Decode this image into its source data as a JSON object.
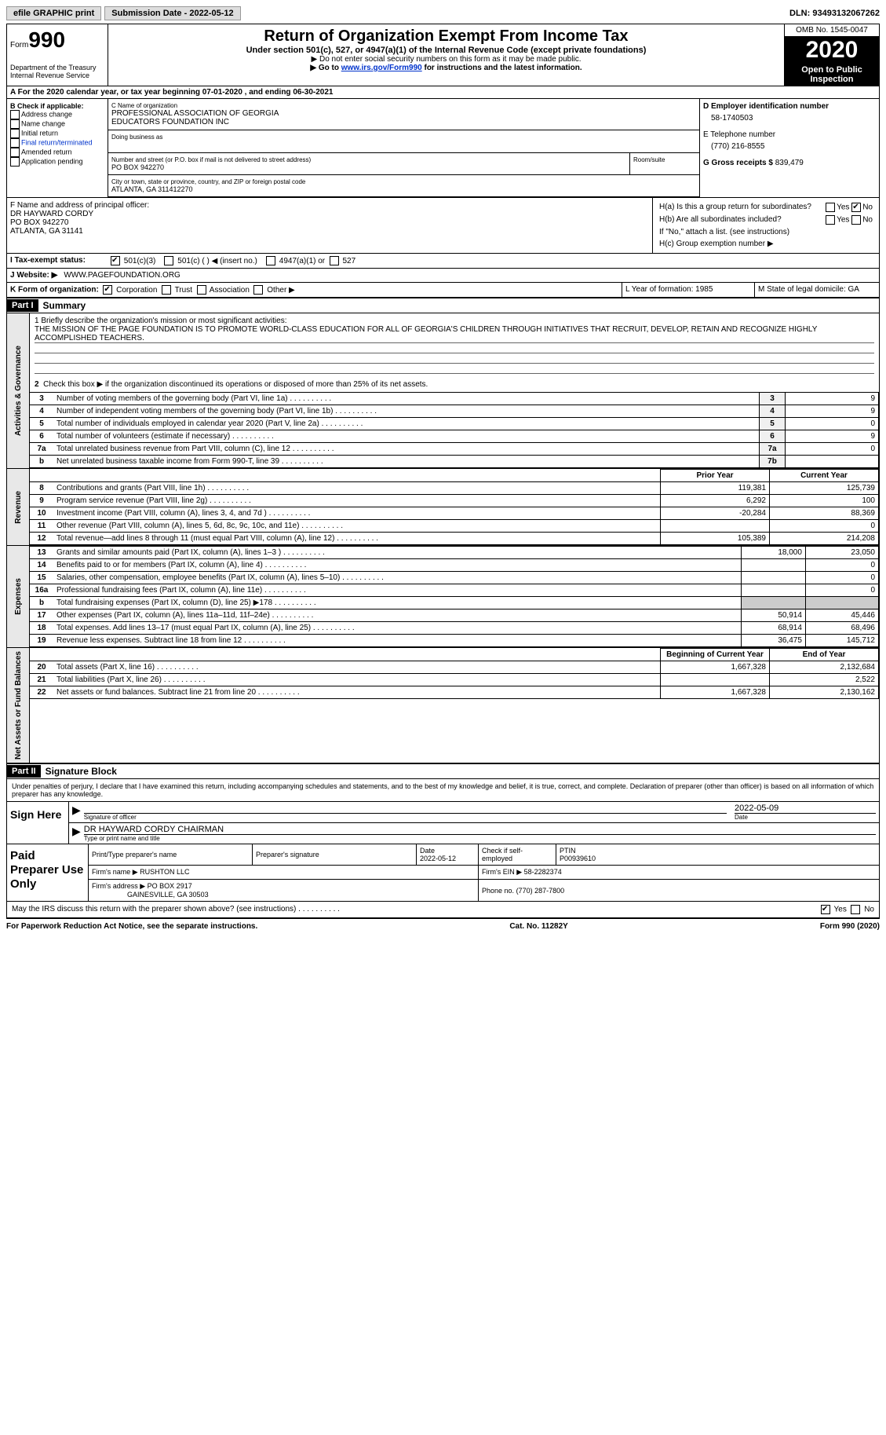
{
  "topbar": {
    "efile": "efile GRAPHIC print",
    "submission_label": "Submission Date - ",
    "submission_date": "2022-05-12",
    "dln_label": "DLN: ",
    "dln": "93493132067262"
  },
  "header": {
    "form_word": "Form",
    "form_num": "990",
    "dept": "Department of the Treasury",
    "irs": "Internal Revenue Service",
    "title": "Return of Organization Exempt From Income Tax",
    "subtitle": "Under section 501(c), 527, or 4947(a)(1) of the Internal Revenue Code (except private foundations)",
    "note1": "▶ Do not enter social security numbers on this form as it may be made public.",
    "note2_pre": "▶ Go to ",
    "note2_link": "www.irs.gov/Form990",
    "note2_post": " for instructions and the latest information.",
    "omb": "OMB No. 1545-0047",
    "year": "2020",
    "open": "Open to Public Inspection"
  },
  "period": {
    "text": "A For the 2020 calendar year, or tax year beginning 07-01-2020    , and ending 06-30-2021"
  },
  "boxB": {
    "label": "B Check if applicable:",
    "items": [
      "Address change",
      "Name change",
      "Initial return",
      "Final return/terminated",
      "Amended return",
      "Application pending"
    ]
  },
  "boxC": {
    "name_label": "C Name of organization",
    "name1": "PROFESSIONAL ASSOCIATION OF GEORGIA",
    "name2": "EDUCATORS FOUNDATION INC",
    "dba_label": "Doing business as",
    "addr_label": "Number and street (or P.O. box if mail is not delivered to street address)",
    "room_label": "Room/suite",
    "addr": "PO BOX 942270",
    "city_label": "City or town, state or province, country, and ZIP or foreign postal code",
    "city": "ATLANTA, GA  311412270"
  },
  "boxD": {
    "label": "D Employer identification number",
    "ein": "58-1740503"
  },
  "boxE": {
    "label": "E Telephone number",
    "phone": "(770) 216-8555"
  },
  "boxG": {
    "label": "G Gross receipts $",
    "amount": "839,479"
  },
  "boxF": {
    "label": "F  Name and address of principal officer:",
    "name": "DR HAYWARD CORDY",
    "addr1": "PO BOX 942270",
    "addr2": "ATLANTA, GA  31141"
  },
  "boxH": {
    "a_label": "H(a)  Is this a group return for subordinates?",
    "b_label": "H(b)  Are all subordinates included?",
    "b_note": "If \"No,\" attach a list. (see instructions)",
    "c_label": "H(c)  Group exemption number ▶",
    "yes": "Yes",
    "no": "No"
  },
  "rowI": {
    "label": "I   Tax-exempt status:",
    "o1": "501(c)(3)",
    "o2": "501(c) (  ) ◀ (insert no.)",
    "o3": "4947(a)(1) or",
    "o4": "527"
  },
  "rowJ": {
    "label": "J   Website: ▶",
    "value": " WWW.PAGEFOUNDATION.ORG"
  },
  "rowK": {
    "label": "K Form of organization:",
    "o1": "Corporation",
    "o2": "Trust",
    "o3": "Association",
    "o4": "Other ▶"
  },
  "rowLM": {
    "l": "L Year of formation: 1985",
    "m": "M State of legal domicile: GA"
  },
  "part1": {
    "header": "Part I",
    "title": "Summary",
    "q1_label": "1   Briefly describe the organization's mission or most significant activities:",
    "mission": "THE MISSION OF THE PAGE FOUNDATION IS TO PROMOTE WORLD-CLASS EDUCATION FOR ALL OF GEORGIA'S CHILDREN THROUGH INITIATIVES THAT RECRUIT, DEVELOP, RETAIN AND RECOGNIZE HIGHLY ACCOMPLISHED TEACHERS.",
    "q2": "Check this box ▶      if the organization discontinued its operations or disposed of more than 25% of its net assets.",
    "gov_label": "Activities & Governance",
    "rev_label": "Revenue",
    "exp_label": "Expenses",
    "net_label": "Net Assets or Fund Balances",
    "gov_rows": [
      {
        "n": "3",
        "d": "Number of voting members of the governing body (Part VI, line 1a)",
        "b": "3",
        "v": "9"
      },
      {
        "n": "4",
        "d": "Number of independent voting members of the governing body (Part VI, line 1b)",
        "b": "4",
        "v": "9"
      },
      {
        "n": "5",
        "d": "Total number of individuals employed in calendar year 2020 (Part V, line 2a)",
        "b": "5",
        "v": "0"
      },
      {
        "n": "6",
        "d": "Total number of volunteers (estimate if necessary)",
        "b": "6",
        "v": "9"
      },
      {
        "n": "7a",
        "d": "Total unrelated business revenue from Part VIII, column (C), line 12",
        "b": "7a",
        "v": "0"
      },
      {
        "n": "b",
        "d": "Net unrelated business taxable income from Form 990-T, line 39",
        "b": "7b",
        "v": ""
      }
    ],
    "prior_hdr": "Prior Year",
    "current_hdr": "Current Year",
    "rev_rows": [
      {
        "n": "8",
        "d": "Contributions and grants (Part VIII, line 1h)",
        "p": "119,381",
        "c": "125,739"
      },
      {
        "n": "9",
        "d": "Program service revenue (Part VIII, line 2g)",
        "p": "6,292",
        "c": "100"
      },
      {
        "n": "10",
        "d": "Investment income (Part VIII, column (A), lines 3, 4, and 7d )",
        "p": "-20,284",
        "c": "88,369"
      },
      {
        "n": "11",
        "d": "Other revenue (Part VIII, column (A), lines 5, 6d, 8c, 9c, 10c, and 11e)",
        "p": "",
        "c": "0"
      },
      {
        "n": "12",
        "d": "Total revenue—add lines 8 through 11 (must equal Part VIII, column (A), line 12)",
        "p": "105,389",
        "c": "214,208"
      }
    ],
    "exp_rows": [
      {
        "n": "13",
        "d": "Grants and similar amounts paid (Part IX, column (A), lines 1–3 )",
        "p": "18,000",
        "c": "23,050"
      },
      {
        "n": "14",
        "d": "Benefits paid to or for members (Part IX, column (A), line 4)",
        "p": "",
        "c": "0"
      },
      {
        "n": "15",
        "d": "Salaries, other compensation, employee benefits (Part IX, column (A), lines 5–10)",
        "p": "",
        "c": "0"
      },
      {
        "n": "16a",
        "d": "Professional fundraising fees (Part IX, column (A), line 11e)",
        "p": "",
        "c": "0"
      },
      {
        "n": "b",
        "d": "Total fundraising expenses (Part IX, column (D), line 25) ▶178",
        "p": "SHADE",
        "c": "SHADE"
      },
      {
        "n": "17",
        "d": "Other expenses (Part IX, column (A), lines 11a–11d, 11f–24e)",
        "p": "50,914",
        "c": "45,446"
      },
      {
        "n": "18",
        "d": "Total expenses. Add lines 13–17 (must equal Part IX, column (A), line 25)",
        "p": "68,914",
        "c": "68,496"
      },
      {
        "n": "19",
        "d": "Revenue less expenses. Subtract line 18 from line 12",
        "p": "36,475",
        "c": "145,712"
      }
    ],
    "begin_hdr": "Beginning of Current Year",
    "end_hdr": "End of Year",
    "net_rows": [
      {
        "n": "20",
        "d": "Total assets (Part X, line 16)",
        "p": "1,667,328",
        "c": "2,132,684"
      },
      {
        "n": "21",
        "d": "Total liabilities (Part X, line 26)",
        "p": "",
        "c": "2,522"
      },
      {
        "n": "22",
        "d": "Net assets or fund balances. Subtract line 21 from line 20",
        "p": "1,667,328",
        "c": "2,130,162"
      }
    ]
  },
  "part2": {
    "header": "Part II",
    "title": "Signature Block",
    "decl": "Under penalties of perjury, I declare that I have examined this return, including accompanying schedules and statements, and to the best of my knowledge and belief, it is true, correct, and complete. Declaration of preparer (other than officer) is based on all information of which preparer has any knowledge.",
    "sign_here": "Sign Here",
    "sig_officer": "Signature of officer",
    "sig_date_label": "Date",
    "sig_date": "2022-05-09",
    "type_name": "Type or print name and title",
    "officer_name": "DR HAYWARD CORDY CHAIRMAN",
    "paid_prep": "Paid Preparer Use Only",
    "pp_name_label": "Print/Type preparer's name",
    "pp_sig_label": "Preparer's signature",
    "pp_date_label": "Date",
    "pp_date": "2022-05-12",
    "pp_check_label": "Check        if self-employed",
    "pp_ptin_label": "PTIN",
    "pp_ptin": "P00939610",
    "firm_name_label": "Firm's name    ▶",
    "firm_name": "RUSHTON LLC",
    "firm_ein_label": "Firm's EIN ▶",
    "firm_ein": "58-2282374",
    "firm_addr_label": "Firm's address ▶",
    "firm_addr1": "PO BOX 2917",
    "firm_addr2": "GAINESVILLE, GA  30503",
    "firm_phone_label": "Phone no.",
    "firm_phone": "(770) 287-7800",
    "discuss": "May the IRS discuss this return with the preparer shown above? (see instructions)",
    "yes": "Yes",
    "no": "No"
  },
  "footer": {
    "left": "For Paperwork Reduction Act Notice, see the separate instructions.",
    "mid": "Cat. No. 11282Y",
    "right": "Form 990 (2020)"
  }
}
